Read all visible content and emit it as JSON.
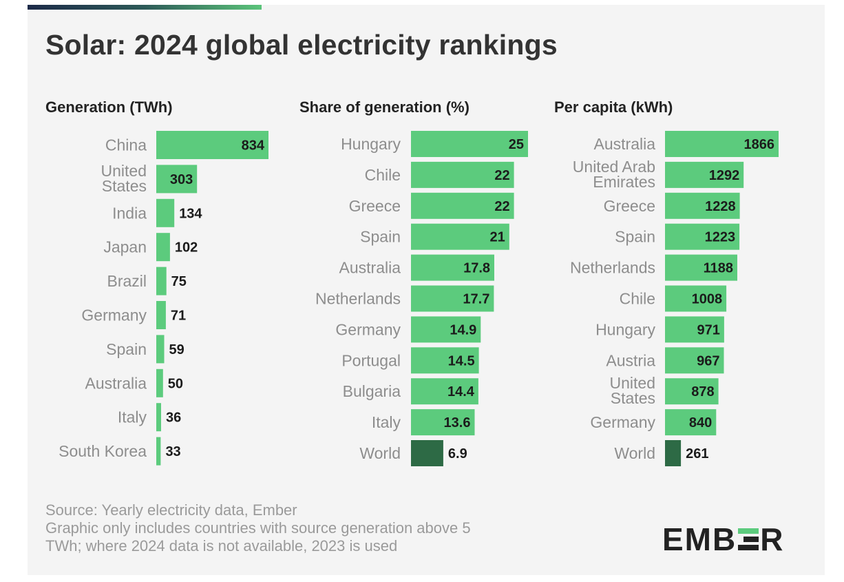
{
  "title": "Solar: 2024 global electricity rankings",
  "colors": {
    "bar": "#5ccb7d",
    "highlight": "#2d6a45",
    "text_dark": "#1b1b1b",
    "category_text": "#8d8d8d"
  },
  "chart_data": [
    {
      "type": "bar",
      "orientation": "horizontal",
      "title": "Generation (TWh)",
      "categories": [
        "China",
        "United States",
        "India",
        "Japan",
        "Brazil",
        "Germany",
        "Spain",
        "Australia",
        "Italy",
        "South Korea"
      ],
      "values": [
        834,
        303,
        134,
        102,
        75,
        71,
        59,
        50,
        36,
        33
      ],
      "highlight": []
    },
    {
      "type": "bar",
      "orientation": "horizontal",
      "title": "Share of generation (%)",
      "categories": [
        "Hungary",
        "Chile",
        "Greece",
        "Spain",
        "Australia",
        "Netherlands",
        "Germany",
        "Portugal",
        "Bulgaria",
        "Italy",
        "World"
      ],
      "values": [
        25,
        22,
        22,
        21,
        17.8,
        17.7,
        14.9,
        14.5,
        14.4,
        13.6,
        6.9
      ],
      "value_labels": [
        "25",
        "22",
        "22",
        "21",
        "17.8",
        "17.7",
        "14.9",
        "14.5",
        "14.4",
        "13.6",
        "6.9"
      ],
      "highlight": [
        "World"
      ]
    },
    {
      "type": "bar",
      "orientation": "horizontal",
      "title": "Per capita (kWh)",
      "categories": [
        "Australia",
        "United Arab Emirates",
        "Greece",
        "Spain",
        "Netherlands",
        "Chile",
        "Hungary",
        "Austria",
        "United States",
        "Germany",
        "World"
      ],
      "values": [
        1866,
        1292,
        1228,
        1223,
        1188,
        1008,
        971,
        967,
        878,
        840,
        261
      ],
      "highlight": [
        "World"
      ]
    }
  ],
  "footnote": [
    "Source: Yearly electricity data, Ember",
    "Graphic only includes countries with source generation above 5",
    "TWh; where 2024 data is not available, 2023 is used"
  ],
  "logo": {
    "text_before": "EMB",
    "text_after": "R",
    "icon": "ember-e-logo-icon"
  }
}
